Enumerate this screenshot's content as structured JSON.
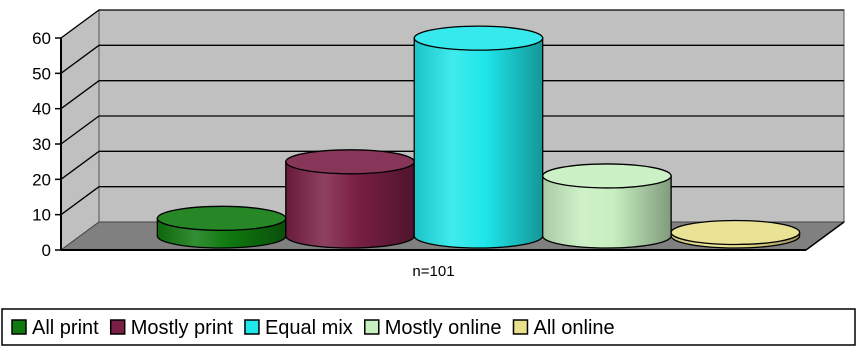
{
  "chart_data": {
    "type": "bar",
    "style": "3d-cylinder",
    "title": "",
    "xlabel": "",
    "ylabel": "",
    "categories": [
      "n=101"
    ],
    "series": [
      {
        "name": "All print",
        "values": [
          5
        ],
        "color": "#0f7a0f"
      },
      {
        "name": "Mostly print",
        "values": [
          21
        ],
        "color": "#7a1f45"
      },
      {
        "name": "Equal mix",
        "values": [
          56
        ],
        "color": "#1ee6ea"
      },
      {
        "name": "Mostly online",
        "values": [
          17
        ],
        "color": "#c7efc0"
      },
      {
        "name": "All online",
        "values": [
          1
        ],
        "color": "#e8e08a"
      }
    ],
    "ylim": [
      0,
      60
    ],
    "yticks": [
      0,
      10,
      20,
      30,
      40,
      50,
      60
    ],
    "grid": true,
    "legend_position": "bottom",
    "colors": {
      "wall": "#c0c0c0",
      "floor": "#808080",
      "gridline": "#000000"
    }
  }
}
